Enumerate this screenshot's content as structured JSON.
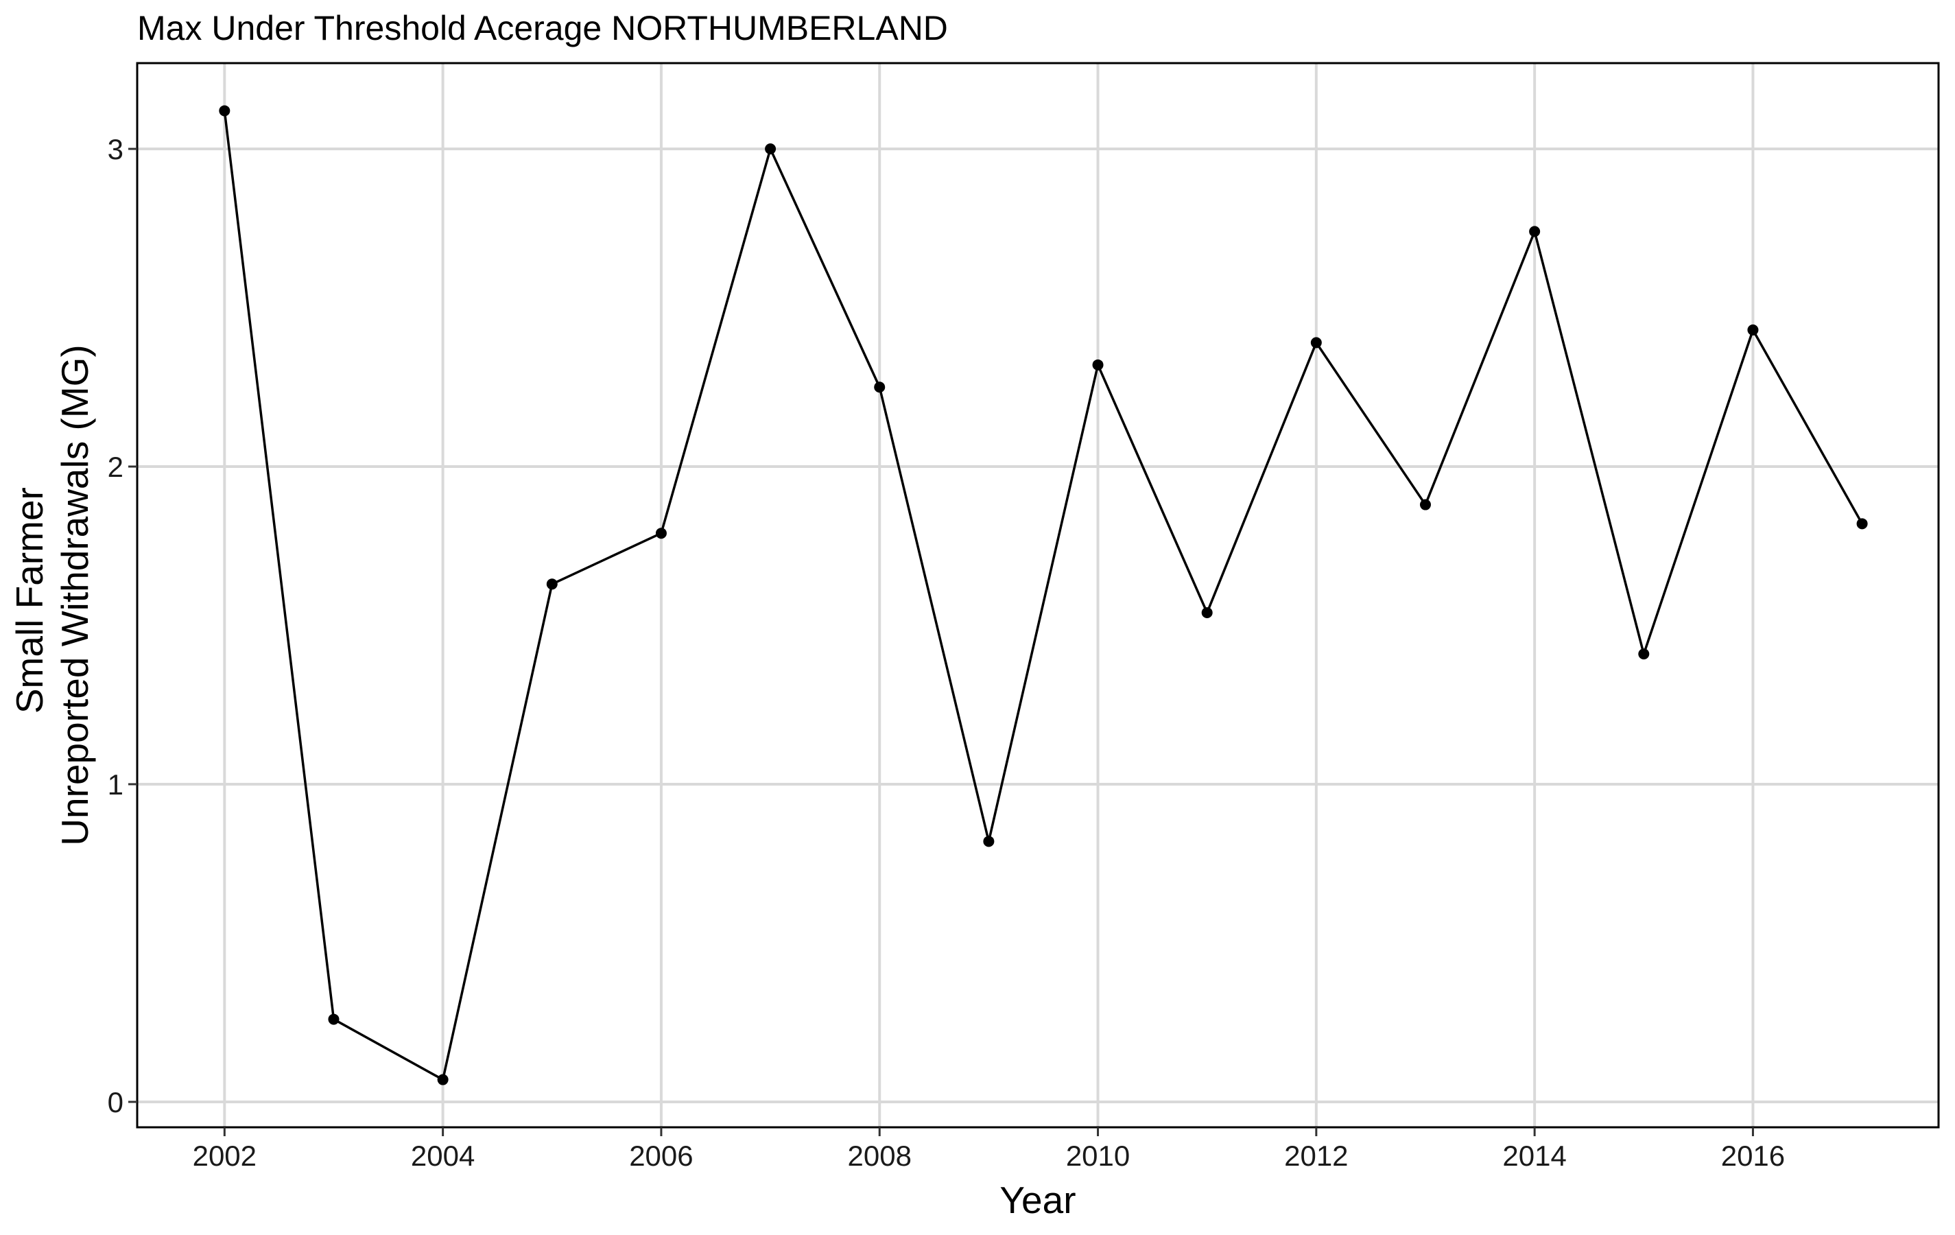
{
  "chart_data": {
    "type": "line",
    "title": "Max Under Threshold Acerage NORTHUMBERLAND",
    "xlabel": "Year",
    "ylabel_lines": [
      "Small Farmer",
      "Unreported Withdrawals (MG)"
    ],
    "x": [
      2002,
      2003,
      2004,
      2005,
      2006,
      2007,
      2008,
      2009,
      2010,
      2011,
      2012,
      2013,
      2014,
      2015,
      2016,
      2017
    ],
    "y": [
      3.12,
      0.26,
      0.07,
      1.63,
      1.79,
      3.0,
      2.25,
      0.82,
      2.32,
      1.54,
      2.39,
      1.88,
      2.74,
      1.41,
      2.43,
      1.82
    ],
    "xlim": [
      2001.2,
      2017.7
    ],
    "ylim": [
      -0.08,
      3.27
    ],
    "x_ticks": [
      2002,
      2004,
      2006,
      2008,
      2010,
      2012,
      2014,
      2016
    ],
    "y_ticks": [
      0,
      1,
      2,
      3
    ],
    "x_tick_labels": [
      "2002",
      "2004",
      "2006",
      "2008",
      "2010",
      "2012",
      "2014",
      "2016"
    ],
    "y_tick_labels": [
      "0",
      "1",
      "2",
      "3"
    ],
    "grid": true,
    "legend": "none",
    "colors": {
      "line": "#000000",
      "grid": "#d9d9d9",
      "background": "#ffffff"
    }
  }
}
